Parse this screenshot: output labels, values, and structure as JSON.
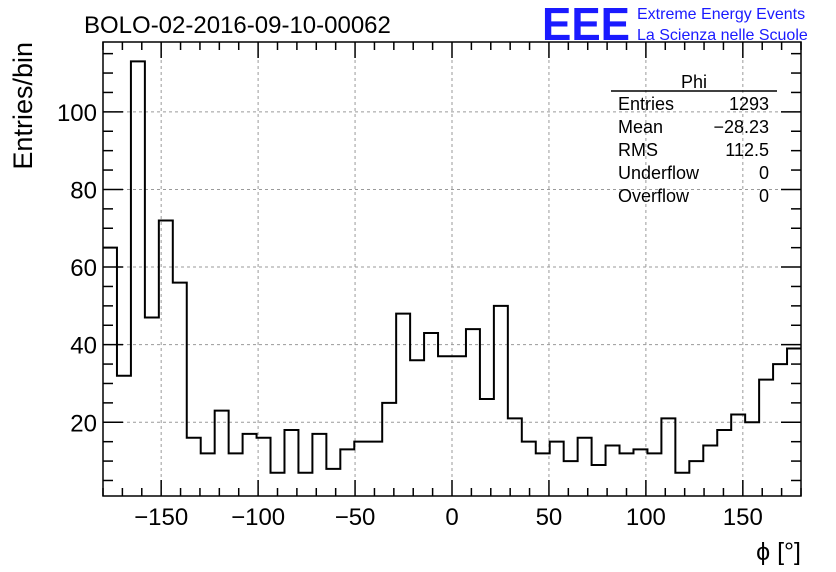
{
  "header": {
    "title": "BOLO-02-2016-09-10-00062",
    "logo_text": "EEE",
    "logo_line1": "Extreme Energy Events",
    "logo_line2": "La Scienza nelle Scuole",
    "logo_color": "#1a1aff"
  },
  "stats": {
    "title": "Phi",
    "rows": [
      {
        "label": "Entries",
        "value": "1293"
      },
      {
        "label": "Mean",
        "value": "−28.23"
      },
      {
        "label": "RMS",
        "value": "112.5"
      },
      {
        "label": "Underflow",
        "value": "0"
      },
      {
        "label": "Overflow",
        "value": "0"
      }
    ]
  },
  "chart_data": {
    "type": "bar",
    "histogram": true,
    "title": "BOLO-02-2016-09-10-00062",
    "xlabel": "ϕ [°]",
    "ylabel": "Entries/bin",
    "xlim": [
      -180,
      180
    ],
    "ylim": [
      1,
      118
    ],
    "bin_width": 7.2,
    "grid": true,
    "x_ticks": [
      -150,
      -100,
      -50,
      0,
      50,
      100,
      150
    ],
    "x_tick_labels": [
      "−150",
      "−100",
      "−50",
      "0",
      "50",
      "100",
      "150"
    ],
    "y_ticks": [
      20,
      40,
      60,
      80,
      100
    ],
    "y_tick_labels": [
      "20",
      "40",
      "60",
      "80",
      "100"
    ],
    "values": [
      65,
      32,
      113,
      47,
      72,
      56,
      16,
      12,
      23,
      12,
      17,
      16,
      7,
      18,
      7,
      17,
      8,
      13,
      15,
      15,
      25,
      48,
      36,
      43,
      37,
      37,
      44,
      26,
      50,
      21,
      15,
      12,
      15,
      10,
      16,
      9,
      14,
      12,
      13,
      12,
      21,
      7,
      10,
      14,
      18,
      22,
      20,
      31,
      35,
      39
    ]
  }
}
